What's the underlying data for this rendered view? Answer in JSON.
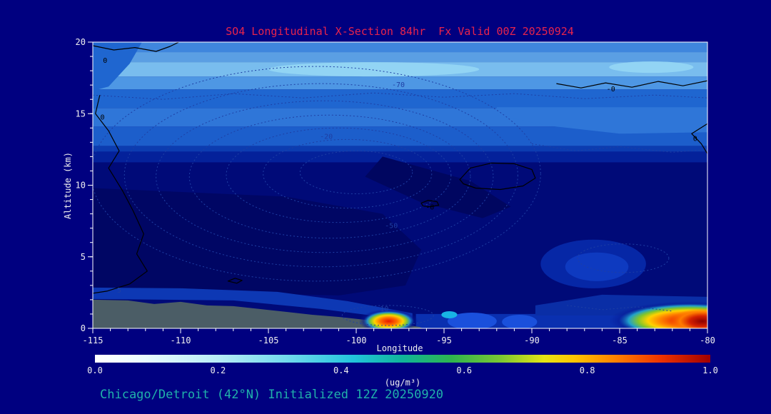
{
  "colors": {
    "page_bg": "#000080",
    "title": "#e8234c",
    "caption": "#20b2aa",
    "axis": "#ffffff",
    "tick_label": "#f0f0f0",
    "dotted_contour": "#1e3fa4",
    "zero_contour": "#000000",
    "terrain": "#4b5d66"
  },
  "caption": "Chicago/Detroit (42°N) Initialized 12Z 20250920",
  "chart_data": {
    "type": "contour-fill-cross-section",
    "title": "SO4 Longitudinal X-Section 84hr  Fx Valid 00Z 20250924",
    "xlabel": "Longitude",
    "ylabel": "Altitude (km)",
    "xlim": [
      -115,
      -80
    ],
    "ylim": [
      0,
      20
    ],
    "xticks": [
      -115,
      -110,
      -105,
      -100,
      -95,
      -90,
      -85,
      -80
    ],
    "yticks": [
      0,
      5,
      10,
      15,
      20
    ],
    "x_minor_step": 1,
    "y_minor_step": 1,
    "grid": false,
    "legend": "none",
    "colorbar": {
      "label": "(ug/m³)",
      "ticks": [
        "0.0",
        "0.2",
        "0.4",
        "0.6",
        "0.8",
        "1.0"
      ],
      "range": [
        0,
        1
      ],
      "stops": [
        {
          "at": 0.0,
          "color": "#ffffff"
        },
        {
          "at": 0.08,
          "color": "#eafcff"
        },
        {
          "at": 0.2,
          "color": "#b8ecf6"
        },
        {
          "at": 0.32,
          "color": "#6cd8ec"
        },
        {
          "at": 0.42,
          "color": "#22c4dc"
        },
        {
          "at": 0.5,
          "color": "#10b49a"
        },
        {
          "at": 0.58,
          "color": "#2eb44e"
        },
        {
          "at": 0.66,
          "color": "#7cc832"
        },
        {
          "at": 0.73,
          "color": "#e6e414"
        },
        {
          "at": 0.78,
          "color": "#ffc400"
        },
        {
          "at": 0.85,
          "color": "#ff7c00"
        },
        {
          "at": 0.92,
          "color": "#ee3200"
        },
        {
          "at": 1.0,
          "color": "#a00000"
        }
      ]
    },
    "bands": [
      [
        0,
        11.6,
        "#000a78"
      ],
      [
        11.6,
        12.35,
        "#04219a"
      ],
      [
        12.35,
        12.75,
        "#0c3cb0"
      ],
      [
        12.75,
        14.1,
        "#1c5ecb"
      ],
      [
        14.1,
        15.4,
        "#2f76d8"
      ],
      [
        15.4,
        16.7,
        "#1f66d0"
      ],
      [
        16.7,
        17.6,
        "#4e97e4"
      ],
      [
        17.6,
        18.6,
        "#79bdee"
      ],
      [
        18.6,
        19.3,
        "#5b9fe3"
      ],
      [
        19.3,
        20,
        "#3f86dd"
      ]
    ],
    "patches": [
      {
        "name": "light-dip-right",
        "pts": [
          [
            -92,
            15.45
          ],
          [
            -80,
            15.45
          ],
          [
            -80,
            13.7
          ],
          [
            -85,
            13.6
          ],
          [
            -89,
            14.15
          ],
          [
            -92,
            14.9
          ]
        ],
        "color": "#2f76d8"
      },
      {
        "name": "dark-top-left",
        "pts": [
          [
            -115,
            20
          ],
          [
            -112.2,
            20
          ],
          [
            -112.9,
            18.5
          ],
          [
            -114.1,
            16.9
          ],
          [
            -115,
            16.6
          ]
        ],
        "color": "#1f66d0"
      },
      {
        "name": "dark-bowl",
        "pts": [
          [
            -115,
            9.8
          ],
          [
            -104,
            9.2
          ],
          [
            -98.5,
            8.0
          ],
          [
            -96.3,
            5.5
          ],
          [
            -97.2,
            3.0
          ],
          [
            -101,
            2.3
          ],
          [
            -108,
            2.5
          ],
          [
            -115,
            2.7
          ]
        ],
        "color": "#000664"
      },
      {
        "name": "dark-diagonal",
        "pts": [
          [
            -98.5,
            12.0
          ],
          [
            -93.5,
            10.3
          ],
          [
            -91.2,
            8.5
          ],
          [
            -92.8,
            7.7
          ],
          [
            -96.3,
            8.8
          ],
          [
            -99.5,
            10.6
          ]
        ],
        "color": "#000660"
      },
      {
        "name": "bottom-strip",
        "pts": [
          [
            -96.6,
            0
          ],
          [
            -80,
            0
          ],
          [
            -80,
            1.0
          ],
          [
            -96.6,
            1.0
          ]
        ],
        "color": "#0a30b0"
      },
      {
        "name": "right-low-band",
        "pts": [
          [
            -89.8,
            0.9
          ],
          [
            -80,
            0.9
          ],
          [
            -80,
            2.2
          ],
          [
            -86,
            2.35
          ],
          [
            -89.8,
            1.6
          ]
        ],
        "color": "#0a2ea6"
      },
      {
        "name": "left-low-band",
        "pts": [
          [
            -115,
            2.05
          ],
          [
            -107,
            1.95
          ],
          [
            -102,
            1.35
          ],
          [
            -98.8,
            0.85
          ],
          [
            -96.8,
            0.5
          ],
          [
            -96.8,
            1.05
          ],
          [
            -100.5,
            1.9
          ],
          [
            -104.5,
            2.55
          ],
          [
            -110,
            2.8
          ],
          [
            -115,
            2.85
          ]
        ],
        "color": "#0d38b4"
      }
    ],
    "ellipse_patches": [
      {
        "cx": -86.5,
        "cy": 4.5,
        "rx": 3.0,
        "ry": 1.7,
        "color": "#0627a6"
      },
      {
        "cx": -86.3,
        "cy": 4.3,
        "rx": 1.8,
        "ry": 1.0,
        "color": "#0e3ac0"
      },
      {
        "cx": -93.4,
        "cy": 0.5,
        "rx": 1.4,
        "ry": 0.6,
        "color": "#1a50dc"
      },
      {
        "cx": -90.7,
        "cy": 0.45,
        "rx": 1.0,
        "ry": 0.5,
        "color": "#1a50dc"
      },
      {
        "cx": -94.7,
        "cy": 0.95,
        "rx": 0.45,
        "ry": 0.25,
        "color": "#18b4e4"
      },
      {
        "cx": -99.0,
        "cy": 18.1,
        "rx": 6.0,
        "ry": 0.5,
        "color": "#92d4f4"
      },
      {
        "cx": -83.2,
        "cy": 18.25,
        "rx": 2.4,
        "ry": 0.4,
        "color": "#92d4f4"
      }
    ],
    "terrain": {
      "pts": [
        [
          -115,
          0
        ],
        [
          -115,
          2.0
        ],
        [
          -113,
          1.95
        ],
        [
          -111.5,
          1.7
        ],
        [
          -110,
          1.85
        ],
        [
          -108.5,
          1.6
        ],
        [
          -107,
          1.55
        ],
        [
          -105.5,
          1.35
        ],
        [
          -104,
          1.15
        ],
        [
          -102.5,
          0.95
        ],
        [
          -101,
          0.8
        ],
        [
          -99.5,
          0.6
        ],
        [
          -98.2,
          0.42
        ],
        [
          -97.2,
          0.25
        ],
        [
          -96.4,
          0.1
        ],
        [
          -96.2,
          0
        ]
      ]
    },
    "hotspots": [
      {
        "cx": -98.15,
        "cy": 0.5,
        "rx": 1.7,
        "ry": 0.85,
        "stops": [
          [
            "0%",
            "#e81600"
          ],
          [
            "28%",
            "#ff6c00"
          ],
          [
            "48%",
            "#ffd200"
          ],
          [
            "60%",
            "#8cc828"
          ],
          [
            "72%",
            "#2090cc"
          ],
          [
            "85%",
            "rgba(6,24,150,0.55)"
          ],
          [
            "100%",
            "rgba(6,24,150,0)"
          ]
        ]
      },
      {
        "cx": -81.0,
        "cy": 0.55,
        "rx": 4.6,
        "ry": 1.35,
        "stops": [
          [
            "0%",
            "#c01400"
          ],
          [
            "20%",
            "#f03c00"
          ],
          [
            "38%",
            "#ff8800"
          ],
          [
            "52%",
            "#ffd200"
          ],
          [
            "64%",
            "#84c628"
          ],
          [
            "76%",
            "#20a0cc"
          ],
          [
            "88%",
            "rgba(6,24,150,0.5)"
          ],
          [
            "100%",
            "rgba(6,24,150,0)"
          ]
        ]
      },
      {
        "cx": -80.3,
        "cy": 0.5,
        "rx": 1.8,
        "ry": 0.9,
        "stops": [
          [
            "0%",
            "#8c0000"
          ],
          [
            "40%",
            "#d42000"
          ],
          [
            "70%",
            "#ff7c00"
          ],
          [
            "100%",
            "rgba(255,124,0,0)"
          ]
        ]
      }
    ],
    "dotted_contours": {
      "center": [
        -101.5,
        10.6
      ],
      "rings": [
        [
          3.2,
          1.5,
          1.5,
          0.3
        ],
        [
          4.8,
          2.4,
          1.0,
          0.2
        ],
        [
          6.4,
          3.3,
          0.5,
          0.1
        ],
        [
          8.0,
          4.3,
          0.0,
          0.0
        ],
        [
          9.6,
          5.3,
          -0.3,
          0.0
        ],
        [
          11.2,
          6.4,
          -0.5,
          0.1
        ],
        [
          12.8,
          7.5,
          -0.8,
          0.2
        ]
      ],
      "ellipses": [
        [
          -84.8,
          4.9,
          2.6,
          1.0
        ],
        [
          -98.2,
          0.9,
          2.6,
          0.7
        ]
      ],
      "polylines": [
        [
          [
            -115,
            16.3
          ],
          [
            -111,
            16.0
          ],
          [
            -107,
            16.4
          ],
          [
            -103,
            16.1
          ],
          [
            -99,
            16.45
          ],
          [
            -95,
            16.15
          ],
          [
            -91,
            16.4
          ],
          [
            -87,
            16.05
          ],
          [
            -83,
            16.3
          ],
          [
            -80,
            16.1
          ]
        ],
        [
          [
            -90,
            12.9
          ],
          [
            -87.5,
            12.4
          ],
          [
            -85,
            12.7
          ],
          [
            -82,
            12.3
          ],
          [
            -80,
            12.5
          ]
        ],
        [
          [
            -88,
            1.6
          ],
          [
            -86,
            1.3
          ],
          [
            -84,
            1.5
          ],
          [
            -82,
            1.2
          ]
        ]
      ]
    },
    "black_contours": [
      {
        "closed": false,
        "pts": [
          [
            -115,
            19.75
          ],
          [
            -113.8,
            19.45
          ],
          [
            -112.6,
            19.62
          ],
          [
            -111.4,
            19.35
          ],
          [
            -110.6,
            19.7
          ],
          [
            -110.1,
            20.0
          ]
        ]
      },
      {
        "closed": false,
        "pts": [
          [
            -114.6,
            16.3
          ],
          [
            -114.85,
            15.0
          ],
          [
            -114.1,
            13.8
          ],
          [
            -113.5,
            12.4
          ],
          [
            -114.1,
            11.2
          ],
          [
            -113.3,
            9.6
          ],
          [
            -112.7,
            8.2
          ],
          [
            -112.1,
            6.6
          ],
          [
            -112.5,
            5.2
          ],
          [
            -111.9,
            4.0
          ],
          [
            -112.9,
            3.1
          ],
          [
            -114.2,
            2.6
          ],
          [
            -115,
            2.45
          ]
        ]
      },
      {
        "closed": false,
        "pts": [
          [
            -88.6,
            17.1
          ],
          [
            -87.2,
            16.8
          ],
          [
            -85.8,
            17.15
          ],
          [
            -84.3,
            16.85
          ],
          [
            -82.8,
            17.25
          ],
          [
            -81.4,
            16.95
          ],
          [
            -80,
            17.3
          ]
        ]
      },
      {
        "closed": false,
        "pts": [
          [
            -80,
            14.3
          ],
          [
            -80.9,
            13.6
          ],
          [
            -80.35,
            12.9
          ],
          [
            -80,
            12.2
          ]
        ]
      },
      {
        "closed": true,
        "pts": [
          [
            -94.1,
            10.4
          ],
          [
            -93.5,
            11.2
          ],
          [
            -92.3,
            11.55
          ],
          [
            -91.0,
            11.5
          ],
          [
            -90.0,
            11.1
          ],
          [
            -89.8,
            10.5
          ],
          [
            -90.5,
            9.95
          ],
          [
            -91.8,
            9.7
          ],
          [
            -93.2,
            9.8
          ],
          [
            -93.9,
            10.1
          ]
        ]
      },
      {
        "closed": true,
        "pts": [
          [
            -96.3,
            8.75
          ],
          [
            -95.9,
            8.95
          ],
          [
            -95.4,
            8.85
          ],
          [
            -95.3,
            8.6
          ],
          [
            -95.8,
            8.5
          ],
          [
            -96.2,
            8.55
          ]
        ]
      },
      {
        "closed": true,
        "pts": [
          [
            -107.3,
            3.3
          ],
          [
            -106.9,
            3.5
          ],
          [
            -106.5,
            3.35
          ],
          [
            -106.8,
            3.15
          ]
        ]
      }
    ],
    "contour_labels": [
      {
        "text": "-70",
        "x": -97.6,
        "y": 16.85,
        "kind": "dotted"
      },
      {
        "text": "-20",
        "x": -101.7,
        "y": 13.25,
        "kind": "dotted"
      },
      {
        "text": "-50",
        "x": -98.0,
        "y": 7.0,
        "kind": "dotted"
      },
      {
        "text": "10",
        "x": -98.4,
        "y": 1.2,
        "kind": "dotted"
      },
      {
        "text": "5",
        "x": -113.5,
        "y": 2.5,
        "kind": "dotted"
      },
      {
        "text": "0",
        "x": -114.3,
        "y": 18.55,
        "kind": "zero"
      },
      {
        "text": "0",
        "x": -114.45,
        "y": 14.6,
        "kind": "zero"
      },
      {
        "text": "-0",
        "x": -85.5,
        "y": 16.55,
        "kind": "zero"
      },
      {
        "text": "0",
        "x": -80.7,
        "y": 13.1,
        "kind": "zero"
      },
      {
        "text": "-0",
        "x": -95.8,
        "y": 8.3,
        "kind": "zero"
      }
    ]
  }
}
